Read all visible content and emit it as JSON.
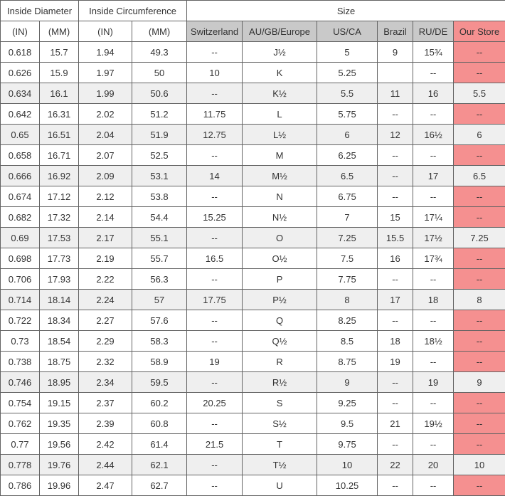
{
  "table": {
    "header_groups": [
      {
        "label": "Inside Diameter"
      },
      {
        "label": "Inside Circumference"
      },
      {
        "label": "Size"
      }
    ],
    "columns": [
      "(IN)",
      "(MM)",
      "(IN)",
      "(MM)",
      "Switzerland",
      "AU/GB/Europe",
      "US/CA",
      "Brazil",
      "RU/DE",
      "Our Store"
    ],
    "empty_marker": "--",
    "rows": [
      [
        "0.618",
        "15.7",
        "1.94",
        "49.3",
        "--",
        "J½",
        "5",
        "9",
        "15¾",
        "--"
      ],
      [
        "0.626",
        "15.9",
        "1.97",
        "50",
        "10",
        "K",
        "5.25",
        "",
        "--",
        "--"
      ],
      [
        "0.634",
        "16.1",
        "1.99",
        "50.6",
        "--",
        "K½",
        "5.5",
        "11",
        "16",
        "5.5"
      ],
      [
        "0.642",
        "16.31",
        "2.02",
        "51.2",
        "11.75",
        "L",
        "5.75",
        "--",
        "--",
        "--"
      ],
      [
        "0.65",
        "16.51",
        "2.04",
        "51.9",
        "12.75",
        "L½",
        "6",
        "12",
        "16½",
        "6"
      ],
      [
        "0.658",
        "16.71",
        "2.07",
        "52.5",
        "--",
        "M",
        "6.25",
        "--",
        "--",
        "--"
      ],
      [
        "0.666",
        "16.92",
        "2.09",
        "53.1",
        "14",
        "M½",
        "6.5",
        "--",
        "17",
        "6.5"
      ],
      [
        "0.674",
        "17.12",
        "2.12",
        "53.8",
        "--",
        "N",
        "6.75",
        "--",
        "--",
        "--"
      ],
      [
        "0.682",
        "17.32",
        "2.14",
        "54.4",
        "15.25",
        "N½",
        "7",
        "15",
        "17¼",
        "--"
      ],
      [
        "0.69",
        "17.53",
        "2.17",
        "55.1",
        "--",
        "O",
        "7.25",
        "15.5",
        "17½",
        "7.25"
      ],
      [
        "0.698",
        "17.73",
        "2.19",
        "55.7",
        "16.5",
        "O½",
        "7.5",
        "16",
        "17¾",
        "--"
      ],
      [
        "0.706",
        "17.93",
        "2.22",
        "56.3",
        "--",
        "P",
        "7.75",
        "--",
        "--",
        "--"
      ],
      [
        "0.714",
        "18.14",
        "2.24",
        "57",
        "17.75",
        "P½",
        "8",
        "17",
        "18",
        "8"
      ],
      [
        "0.722",
        "18.34",
        "2.27",
        "57.6",
        "--",
        "Q",
        "8.25",
        "--",
        "--",
        "--"
      ],
      [
        "0.73",
        "18.54",
        "2.29",
        "58.3",
        "--",
        "Q½",
        "8.5",
        "18",
        "18½",
        "--"
      ],
      [
        "0.738",
        "18.75",
        "2.32",
        "58.9",
        "19",
        "R",
        "8.75",
        "19",
        "--",
        "--"
      ],
      [
        "0.746",
        "18.95",
        "2.34",
        "59.5",
        "--",
        "R½",
        "9",
        "--",
        "19",
        "9"
      ],
      [
        "0.754",
        "19.15",
        "2.37",
        "60.2",
        "20.25",
        "S",
        "9.25",
        "--",
        "--",
        "--"
      ],
      [
        "0.762",
        "19.35",
        "2.39",
        "60.8",
        "--",
        "S½",
        "9.5",
        "21",
        "19½",
        "--"
      ],
      [
        "0.77",
        "19.56",
        "2.42",
        "61.4",
        "21.5",
        "T",
        "9.75",
        "--",
        "--",
        "--"
      ],
      [
        "0.778",
        "19.76",
        "2.44",
        "62.1",
        "--",
        "T½",
        "10",
        "22",
        "20",
        "10"
      ],
      [
        "0.786",
        "19.96",
        "2.47",
        "62.7",
        "--",
        "U",
        "10.25",
        "--",
        "--",
        "--"
      ]
    ]
  },
  "colors": {
    "geo_header_gray": "#c9c9c9",
    "store_pink": "#f59090",
    "shaded_row_gray": "#efefef",
    "border": "#636363",
    "text": "#333333"
  }
}
